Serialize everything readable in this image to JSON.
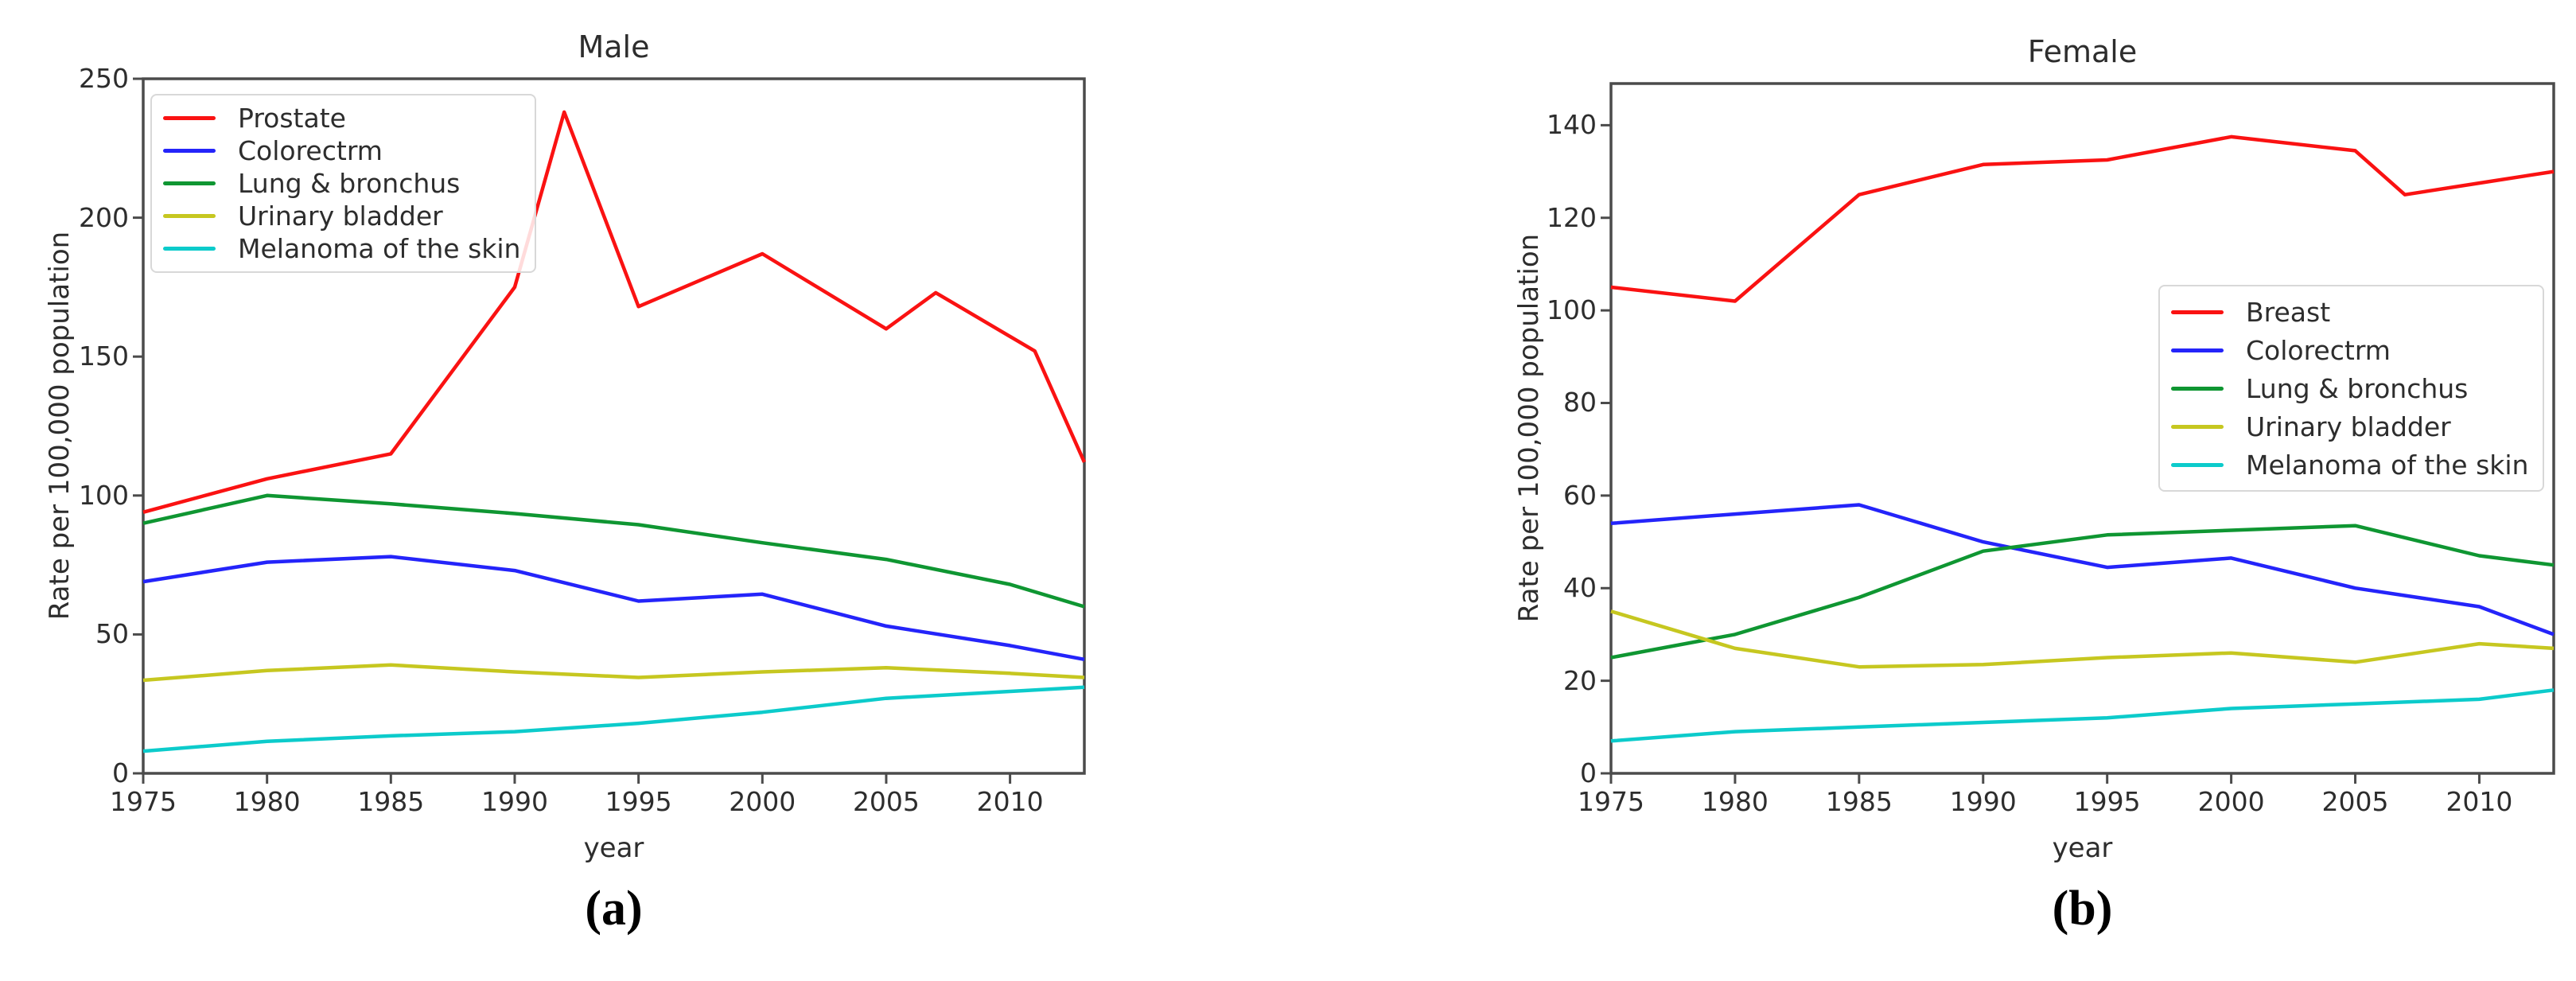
{
  "figure": {
    "background": "#ffffff",
    "axis_color": "#4b4b4b",
    "text_color": "#2d2d2d"
  },
  "chart_data": [
    {
      "type": "line",
      "title": "Male",
      "caption": "(a)",
      "xlabel": "year",
      "ylabel": "Rate per 100,000 population",
      "xlim": [
        1975,
        2013
      ],
      "ylim": [
        0,
        250
      ],
      "x_ticks": [
        1975,
        1980,
        1985,
        1990,
        1995,
        2000,
        2005,
        2010
      ],
      "y_ticks": [
        0,
        50,
        100,
        150,
        200,
        250
      ],
      "grid": false,
      "legend_position": "upper-left",
      "series": [
        {
          "name": "Prostate",
          "color": "#fa1212",
          "points": [
            [
              1975,
              94
            ],
            [
              1980,
              106
            ],
            [
              1985,
              115
            ],
            [
              1990,
              175
            ],
            [
              1992,
              238
            ],
            [
              1995,
              168
            ],
            [
              2000,
              187
            ],
            [
              2005,
              160
            ],
            [
              2007,
              173
            ],
            [
              2011,
              152
            ],
            [
              2013,
              112
            ]
          ]
        },
        {
          "name": "Colorectrm",
          "color": "#2424fa",
          "points": [
            [
              1975,
              69
            ],
            [
              1980,
              76
            ],
            [
              1985,
              78
            ],
            [
              1990,
              73
            ],
            [
              1995,
              62
            ],
            [
              2000,
              64.5
            ],
            [
              2005,
              53
            ],
            [
              2010,
              46
            ],
            [
              2013,
              41
            ]
          ]
        },
        {
          "name": "Lung & bronchus",
          "color": "#0f9632",
          "points": [
            [
              1975,
              90
            ],
            [
              1980,
              100
            ],
            [
              1985,
              97
            ],
            [
              1990,
              93.5
            ],
            [
              1995,
              89.5
            ],
            [
              2000,
              83
            ],
            [
              2005,
              77
            ],
            [
              2010,
              68
            ],
            [
              2013,
              60
            ]
          ]
        },
        {
          "name": "Urinary bladder",
          "color": "#c6c720",
          "points": [
            [
              1975,
              33.5
            ],
            [
              1980,
              37
            ],
            [
              1985,
              39
            ],
            [
              1990,
              36.5
            ],
            [
              1995,
              34.5
            ],
            [
              2000,
              36.5
            ],
            [
              2005,
              38
            ],
            [
              2010,
              36
            ],
            [
              2013,
              34.5
            ]
          ]
        },
        {
          "name": "Melanoma of the skin",
          "color": "#0ccbcb",
          "points": [
            [
              1975,
              8
            ],
            [
              1980,
              11.5
            ],
            [
              1985,
              13.5
            ],
            [
              1990,
              15
            ],
            [
              1995,
              18
            ],
            [
              2000,
              22
            ],
            [
              2005,
              27
            ],
            [
              2010,
              29.5
            ],
            [
              2013,
              31
            ]
          ]
        }
      ]
    },
    {
      "type": "line",
      "title": "Female",
      "caption": "(b)",
      "xlabel": "year",
      "ylabel": "Rate per 100,000 population",
      "xlim": [
        1975,
        2013
      ],
      "ylim": [
        0,
        149
      ],
      "x_ticks": [
        1975,
        1980,
        1985,
        1990,
        1995,
        2000,
        2005,
        2010
      ],
      "y_ticks": [
        0,
        20,
        40,
        60,
        80,
        100,
        120,
        140
      ],
      "grid": false,
      "legend_position": "center-right",
      "series": [
        {
          "name": "Breast",
          "color": "#fa1212",
          "points": [
            [
              1975,
              105
            ],
            [
              1980,
              102
            ],
            [
              1985,
              125
            ],
            [
              1990,
              131.5
            ],
            [
              1995,
              132.5
            ],
            [
              2000,
              137.5
            ],
            [
              2005,
              134.5
            ],
            [
              2007,
              125
            ],
            [
              2010,
              127.5
            ],
            [
              2013,
              130
            ]
          ]
        },
        {
          "name": "Colorectrm",
          "color": "#2424fa",
          "points": [
            [
              1975,
              54
            ],
            [
              1980,
              56
            ],
            [
              1985,
              58
            ],
            [
              1990,
              50
            ],
            [
              1995,
              44.5
            ],
            [
              2000,
              46.5
            ],
            [
              2005,
              40
            ],
            [
              2010,
              36
            ],
            [
              2013,
              30
            ]
          ]
        },
        {
          "name": "Lung & bronchus",
          "color": "#0f9632",
          "points": [
            [
              1975,
              25
            ],
            [
              1980,
              30
            ],
            [
              1985,
              38
            ],
            [
              1990,
              48
            ],
            [
              1995,
              51.5
            ],
            [
              2000,
              52.5
            ],
            [
              2005,
              53.5
            ],
            [
              2010,
              47
            ],
            [
              2013,
              45
            ]
          ]
        },
        {
          "name": "Urinary bladder",
          "color": "#c6c720",
          "points": [
            [
              1975,
              35
            ],
            [
              1980,
              27
            ],
            [
              1985,
              23
            ],
            [
              1990,
              23.5
            ],
            [
              1995,
              25
            ],
            [
              2000,
              26
            ],
            [
              2005,
              24
            ],
            [
              2010,
              28
            ],
            [
              2013,
              27
            ]
          ]
        },
        {
          "name": "Melanoma of the skin",
          "color": "#0ccbcb",
          "points": [
            [
              1975,
              7
            ],
            [
              1980,
              9
            ],
            [
              1985,
              10
            ],
            [
              1990,
              11
            ],
            [
              1995,
              12
            ],
            [
              2000,
              14
            ],
            [
              2005,
              15
            ],
            [
              2010,
              16
            ],
            [
              2013,
              18
            ]
          ]
        }
      ]
    }
  ]
}
